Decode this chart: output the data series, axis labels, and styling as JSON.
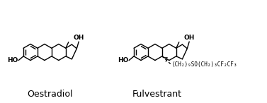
{
  "label_oestradiol": "Oestradiol",
  "label_fulvestrant": "Fulvestrant",
  "oh_label": "OH",
  "ho_label": "HO",
  "side_chain": "(CH₂)₉SO(CH₂)₃CF₂CF₃",
  "bg_color": "#ffffff",
  "line_color": "#000000",
  "font_size_label": 9,
  "font_size_group": 6.5,
  "font_size_num": 6
}
